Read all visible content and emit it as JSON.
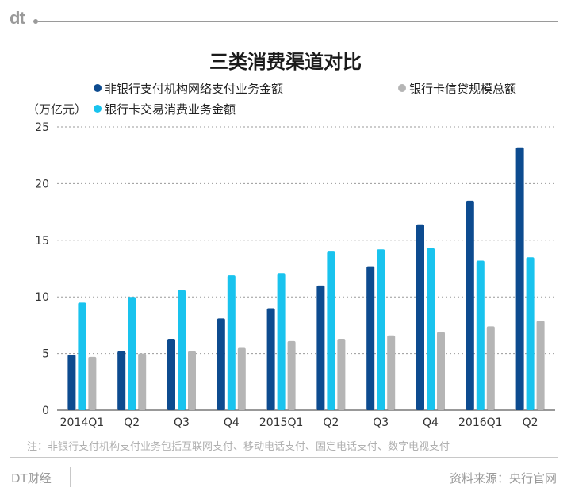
{
  "brand_logo": "dt",
  "chart_data": {
    "type": "bar",
    "title": "三类消费渠道对比",
    "ylabel": "（万亿元）",
    "ylim": [
      0,
      25
    ],
    "yticks": [
      0,
      5,
      10,
      15,
      20,
      25
    ],
    "grid": true,
    "categories": [
      "2014Q1",
      "Q2",
      "Q3",
      "Q4",
      "2015Q1",
      "Q2",
      "Q3",
      "Q4",
      "2016Q1",
      "Q2"
    ],
    "series": [
      {
        "name": "非银行支付机构网络支付业务金额",
        "color": "#0d4b8f",
        "values": [
          4.9,
          5.2,
          6.3,
          8.1,
          9.0,
          11.0,
          12.7,
          16.4,
          18.5,
          23.2
        ]
      },
      {
        "name": "银行卡交易消费业务金额",
        "color": "#19c3ee",
        "values": [
          9.5,
          10.0,
          10.6,
          11.9,
          12.1,
          14.0,
          14.2,
          14.3,
          13.2,
          13.5
        ]
      },
      {
        "name": "银行卡信贷规模总额",
        "color": "#b5b5b5",
        "values": [
          4.7,
          5.0,
          5.2,
          5.5,
          6.1,
          6.3,
          6.6,
          6.9,
          7.4,
          7.9
        ]
      }
    ]
  },
  "legend": {
    "item1": "非银行支付机构网络支付业务金额",
    "item2": "银行卡信贷规模总额",
    "item3": "银行卡交易消费业务金额"
  },
  "footnote": "注：非银行支付机构支付业务包括互联网支付、移动电话支付、固定电话支付、数字电视支付",
  "footer": {
    "brand": "DT财经",
    "source": "资料来源：央行官网"
  }
}
